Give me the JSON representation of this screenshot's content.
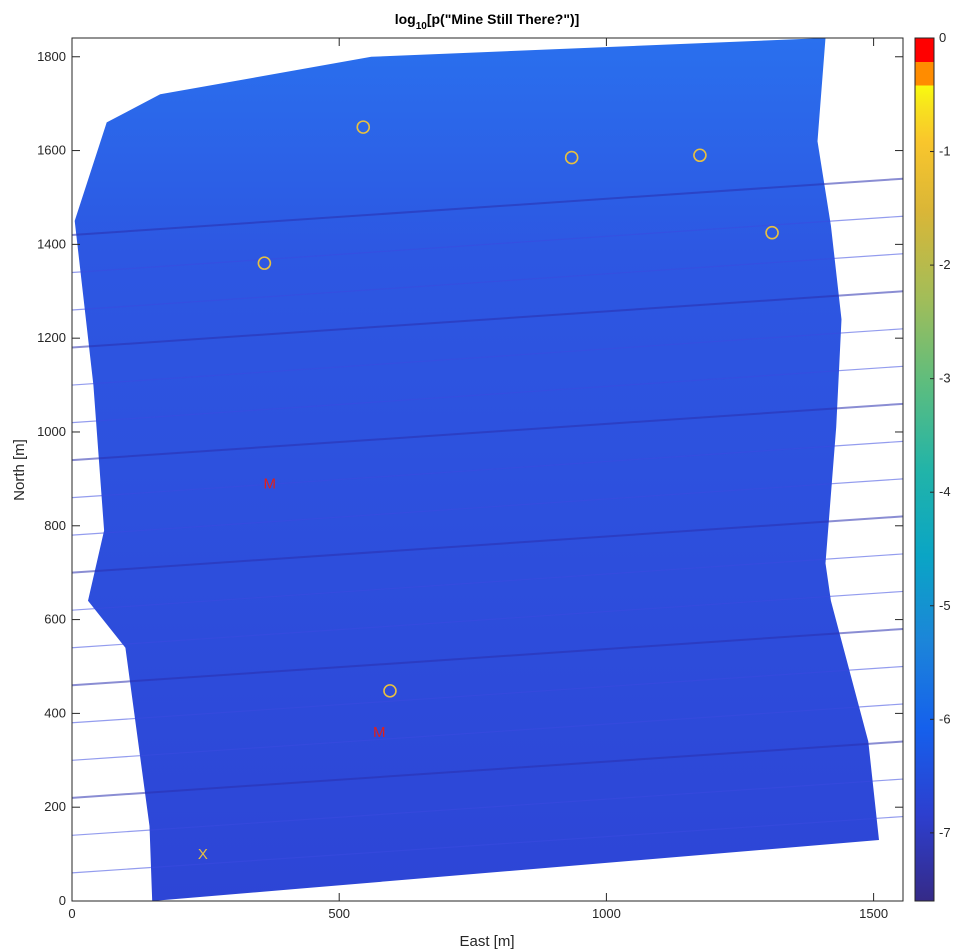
{
  "chart_data": {
    "type": "heatmap",
    "title": {
      "prefix": "log",
      "subscript": "10",
      "suffix": "[p(\"Mine Still There?\")]"
    },
    "xlabel": "East [m]",
    "ylabel": "North [m]",
    "xlim": [
      0,
      1555
    ],
    "ylim": [
      0,
      1840
    ],
    "xticks": [
      0,
      500,
      1000,
      1500
    ],
    "yticks": [
      0,
      200,
      400,
      600,
      800,
      1000,
      1200,
      1400,
      1600,
      1800
    ],
    "colorbar": {
      "clim": [
        -7.6,
        0
      ],
      "ticks": [
        0,
        -1,
        -2,
        -3,
        -4,
        -5,
        -6,
        -7
      ],
      "colormap": "parula",
      "top_colors": [
        "#ff8c00",
        "#ff0000"
      ]
    },
    "survey_polygon": [
      [
        150,
        0
      ],
      [
        1510,
        130
      ],
      [
        1490,
        340
      ],
      [
        1420,
        640
      ],
      [
        1410,
        720
      ],
      [
        1430,
        1010
      ],
      [
        1440,
        1240
      ],
      [
        1420,
        1440
      ],
      [
        1395,
        1620
      ],
      [
        1410,
        1840
      ],
      [
        560,
        1800
      ],
      [
        165,
        1720
      ],
      [
        65,
        1660
      ],
      [
        5,
        1450
      ],
      [
        40,
        1100
      ],
      [
        60,
        790
      ],
      [
        30,
        640
      ],
      [
        100,
        540
      ],
      [
        145,
        160
      ]
    ],
    "field_color": "#2f52e0",
    "markers": [
      {
        "type": "O",
        "x": 545,
        "y": 1650,
        "color": "#e8c040"
      },
      {
        "type": "O",
        "x": 935,
        "y": 1585,
        "color": "#e8c040"
      },
      {
        "type": "O",
        "x": 1175,
        "y": 1590,
        "color": "#e8c040"
      },
      {
        "type": "O",
        "x": 1310,
        "y": 1425,
        "color": "#e8c040"
      },
      {
        "type": "O",
        "x": 360,
        "y": 1360,
        "color": "#e8c040"
      },
      {
        "type": "O",
        "x": 595,
        "y": 448,
        "color": "#e8c040"
      },
      {
        "type": "M",
        "x": 370,
        "y": 890,
        "color": "#e0201a"
      },
      {
        "type": "M",
        "x": 575,
        "y": 360,
        "color": "#e0201a"
      },
      {
        "type": "X",
        "x": 245,
        "y": 100,
        "color": "#e8c040"
      }
    ]
  }
}
